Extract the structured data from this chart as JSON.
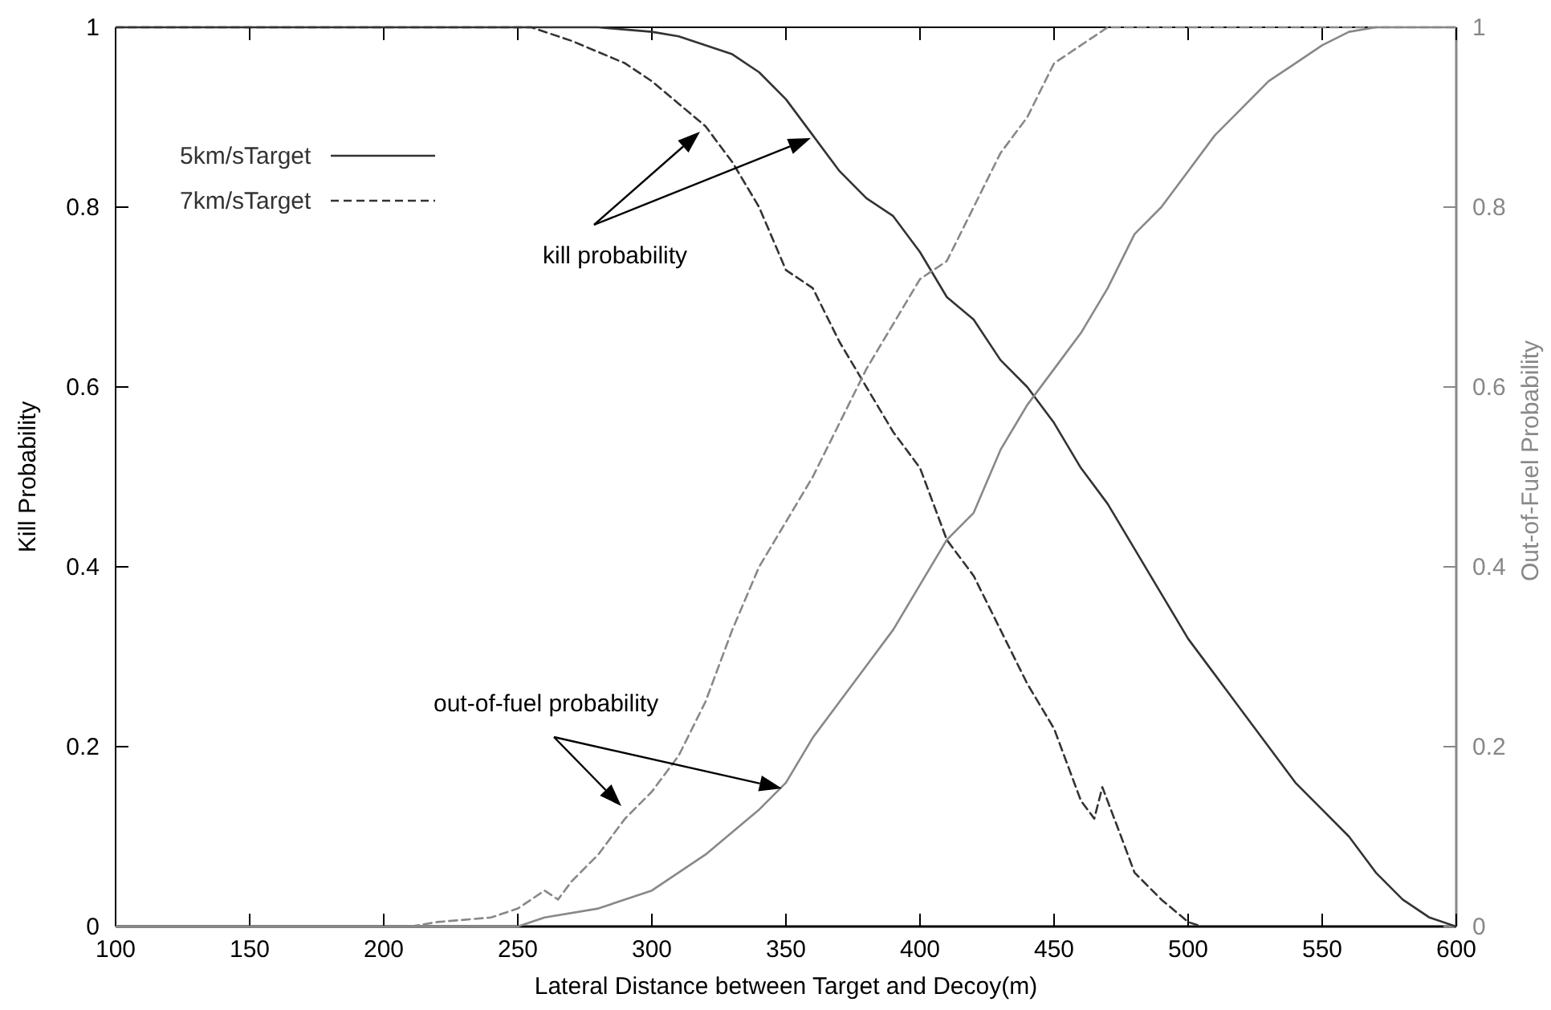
{
  "chart_data": {
    "type": "line",
    "xlabel": "Lateral Distance between Target and Decoy(m)",
    "ylabel": "Kill Probability",
    "y2label": "Out-of-Fuel Probability",
    "xlim": [
      100,
      600
    ],
    "xticks": [
      100,
      150,
      200,
      250,
      300,
      350,
      400,
      450,
      500,
      550,
      600
    ],
    "ylim": [
      0,
      1
    ],
    "yticks": [
      0,
      0.2,
      0.4,
      0.6,
      0.8,
      1
    ],
    "y2lim": [
      0,
      1
    ],
    "y2ticks": [
      0,
      0.2,
      0.4,
      0.6,
      0.8,
      1
    ],
    "grid": false,
    "legend": "top left",
    "marker": "none",
    "annotations": [
      "kill probability",
      "out-of-fuel probability"
    ],
    "series": [
      {
        "name": "5km/sTarget",
        "color": "#333333",
        "line_style": "solid",
        "x": [
          100,
          250,
          280,
          300,
          310,
          330,
          340,
          350,
          360,
          370,
          380,
          390,
          400,
          410,
          420,
          430,
          440,
          450,
          460,
          470,
          480,
          490,
          500,
          510,
          520,
          530,
          540,
          550,
          560,
          570,
          580,
          590,
          600
        ],
        "values": [
          1,
          1,
          1,
          0.995,
          0.99,
          0.97,
          0.95,
          0.92,
          0.88,
          0.84,
          0.81,
          0.79,
          0.75,
          0.7,
          0.675,
          0.63,
          0.6,
          0.56,
          0.51,
          0.47,
          0.42,
          0.37,
          0.32,
          0.28,
          0.24,
          0.2,
          0.16,
          0.13,
          0.1,
          0.06,
          0.03,
          0.01,
          0
        ]
      },
      {
        "name": "7km/sTarget",
        "color": "#333333",
        "line_style": "dashed",
        "x": [
          100,
          255,
          270,
          290,
          300,
          310,
          320,
          330,
          340,
          350,
          360,
          370,
          380,
          390,
          400,
          410,
          420,
          430,
          440,
          450,
          460,
          465,
          468,
          475,
          480,
          490,
          500,
          505
        ],
        "values": [
          1,
          1,
          0.985,
          0.96,
          0.94,
          0.915,
          0.89,
          0.85,
          0.8,
          0.73,
          0.71,
          0.65,
          0.6,
          0.55,
          0.51,
          0.43,
          0.39,
          0.33,
          0.27,
          0.22,
          0.14,
          0.12,
          0.155,
          0.1,
          0.06,
          0.03,
          0.005,
          0
        ]
      },
      {
        "color": "#888888",
        "line_style": "solid",
        "axis": "y2",
        "x": [
          100,
          250,
          260,
          280,
          300,
          320,
          340,
          350,
          360,
          370,
          380,
          390,
          400,
          410,
          420,
          430,
          440,
          450,
          460,
          470,
          480,
          490,
          500,
          510,
          520,
          530,
          540,
          550,
          560,
          570,
          600
        ],
        "values": [
          0,
          0,
          0.01,
          0.02,
          0.04,
          0.08,
          0.13,
          0.16,
          0.21,
          0.25,
          0.29,
          0.33,
          0.38,
          0.43,
          0.46,
          0.53,
          0.58,
          0.62,
          0.66,
          0.71,
          0.77,
          0.8,
          0.84,
          0.88,
          0.91,
          0.94,
          0.96,
          0.98,
          0.995,
          1,
          1
        ]
      },
      {
        "color": "#888888",
        "line_style": "dashed",
        "axis": "y2",
        "x": [
          100,
          210,
          220,
          240,
          250,
          260,
          265,
          270,
          280,
          290,
          300,
          310,
          320,
          330,
          340,
          350,
          360,
          370,
          380,
          390,
          400,
          410,
          420,
          430,
          440,
          450,
          460,
          470,
          600
        ],
        "values": [
          0,
          0,
          0.005,
          0.01,
          0.02,
          0.04,
          0.03,
          0.05,
          0.08,
          0.12,
          0.15,
          0.19,
          0.25,
          0.33,
          0.4,
          0.45,
          0.5,
          0.56,
          0.62,
          0.67,
          0.72,
          0.74,
          0.8,
          0.86,
          0.9,
          0.96,
          0.98,
          1,
          1
        ]
      }
    ]
  }
}
